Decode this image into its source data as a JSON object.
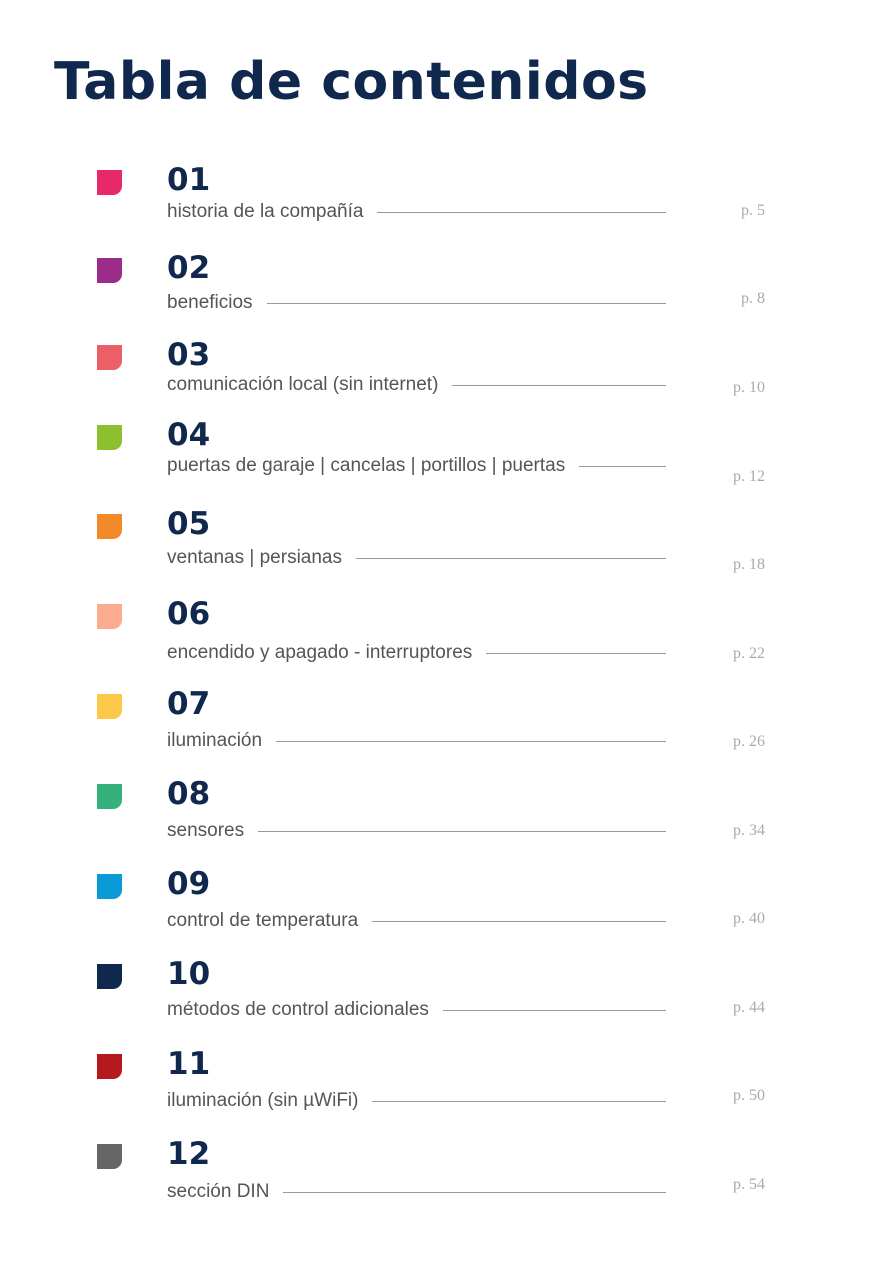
{
  "title": "Tabla de contenidos",
  "items": [
    {
      "number": "01",
      "label": "historia de la compañía",
      "page": "p. 5",
      "color": "#e8286a"
    },
    {
      "number": "02",
      "label": "beneficios",
      "page": "p. 8",
      "color": "#9b2c8a"
    },
    {
      "number": "03",
      "label": "comunicación local (sin internet)",
      "page": "p. 10",
      "color": "#ec5f66"
    },
    {
      "number": "04",
      "label": "puertas de garaje | cancelas | portillos | puertas",
      "page": "p. 12",
      "color": "#8dc02f"
    },
    {
      "number": "05",
      "label": "ventanas | persianas",
      "page": "p. 18",
      "color": "#f28a2a"
    },
    {
      "number": "06",
      "label": "encendido y apagado - interruptores",
      "page": "p. 22",
      "color": "#fbab8e"
    },
    {
      "number": "07",
      "label": "iluminación",
      "page": "p. 26",
      "color": "#fcc84a"
    },
    {
      "number": "08",
      "label": "sensores",
      "page": "p. 34",
      "color": "#36b07d"
    },
    {
      "number": "09",
      "label": "control de temperatura",
      "page": "p. 40",
      "color": "#0b9ad8"
    },
    {
      "number": "10",
      "label": "métodos de control adicionales",
      "page": "p. 44",
      "color": "#10284d"
    },
    {
      "number": "11",
      "label": "iluminación (sin µWiFi)",
      "page": "p. 50",
      "color": "#b5191e"
    },
    {
      "number": "12",
      "label": "sección DIN",
      "page": "p. 54",
      "color": "#666666"
    }
  ]
}
